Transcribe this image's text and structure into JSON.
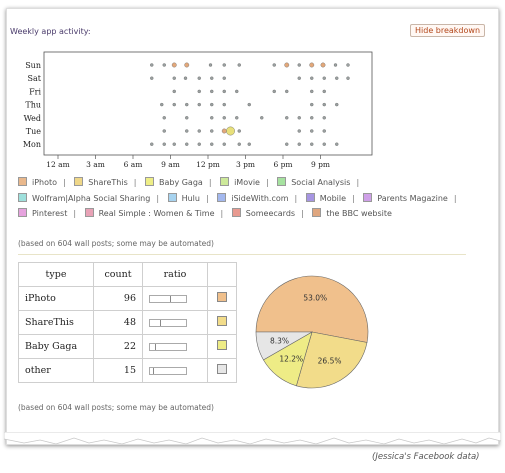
{
  "header": {
    "title": "Weekly app activity:",
    "hide_button": "Hide breakdown"
  },
  "chart_data": [
    {
      "type": "scatter",
      "title": "Weekly app activity:",
      "y_categories": [
        "Sun",
        "Sat",
        "Fri",
        "Thu",
        "Wed",
        "Tue",
        "Mon"
      ],
      "x_ticks": [
        "12 am",
        "3 am",
        "6 am",
        "9 am",
        "12 pm",
        "3 pm",
        "6 pm",
        "9 pm"
      ],
      "x_range_hours": [
        0,
        24
      ],
      "points": [
        {
          "day": "Sun",
          "hour": 7.5,
          "size": 1
        },
        {
          "day": "Sun",
          "hour": 8.5,
          "size": 1
        },
        {
          "day": "Sun",
          "hour": 9.3,
          "size": 2
        },
        {
          "day": "Sun",
          "hour": 10.3,
          "size": 2
        },
        {
          "day": "Sun",
          "hour": 12.2,
          "size": 1
        },
        {
          "day": "Sun",
          "hour": 13.3,
          "size": 1
        },
        {
          "day": "Sun",
          "hour": 14.5,
          "size": 1
        },
        {
          "day": "Sun",
          "hour": 17.3,
          "size": 1
        },
        {
          "day": "Sun",
          "hour": 18.3,
          "size": 2
        },
        {
          "day": "Sun",
          "hour": 19.3,
          "size": 1
        },
        {
          "day": "Sun",
          "hour": 20.3,
          "size": 2
        },
        {
          "day": "Sun",
          "hour": 21.2,
          "size": 2
        },
        {
          "day": "Sun",
          "hour": 22.2,
          "size": 1
        },
        {
          "day": "Sun",
          "hour": 23.2,
          "size": 1
        },
        {
          "day": "Sat",
          "hour": 7.5,
          "size": 1
        },
        {
          "day": "Sat",
          "hour": 9.3,
          "size": 1
        },
        {
          "day": "Sat",
          "hour": 10.2,
          "size": 1
        },
        {
          "day": "Sat",
          "hour": 11.3,
          "size": 1
        },
        {
          "day": "Sat",
          "hour": 12.3,
          "size": 1
        },
        {
          "day": "Sat",
          "hour": 13.3,
          "size": 1
        },
        {
          "day": "Sat",
          "hour": 19.3,
          "size": 1
        },
        {
          "day": "Sat",
          "hour": 20.3,
          "size": 1
        },
        {
          "day": "Sat",
          "hour": 21.3,
          "size": 1
        },
        {
          "day": "Sat",
          "hour": 22.3,
          "size": 1
        },
        {
          "day": "Sat",
          "hour": 23.2,
          "size": 1
        },
        {
          "day": "Fri",
          "hour": 9.3,
          "size": 1
        },
        {
          "day": "Fri",
          "hour": 11.3,
          "size": 1
        },
        {
          "day": "Fri",
          "hour": 12.3,
          "size": 1
        },
        {
          "day": "Fri",
          "hour": 13.3,
          "size": 1
        },
        {
          "day": "Fri",
          "hour": 14.3,
          "size": 1
        },
        {
          "day": "Fri",
          "hour": 17.3,
          "size": 1
        },
        {
          "day": "Fri",
          "hour": 18.3,
          "size": 1
        },
        {
          "day": "Fri",
          "hour": 20.3,
          "size": 1
        },
        {
          "day": "Fri",
          "hour": 21.3,
          "size": 1
        },
        {
          "day": "Thu",
          "hour": 8.3,
          "size": 1
        },
        {
          "day": "Thu",
          "hour": 9.3,
          "size": 1
        },
        {
          "day": "Thu",
          "hour": 10.3,
          "size": 1
        },
        {
          "day": "Thu",
          "hour": 11.3,
          "size": 1
        },
        {
          "day": "Thu",
          "hour": 12.3,
          "size": 1
        },
        {
          "day": "Thu",
          "hour": 13.3,
          "size": 1
        },
        {
          "day": "Thu",
          "hour": 15.3,
          "size": 1
        },
        {
          "day": "Thu",
          "hour": 20.3,
          "size": 1
        },
        {
          "day": "Thu",
          "hour": 21.3,
          "size": 1
        },
        {
          "day": "Thu",
          "hour": 22.3,
          "size": 1
        },
        {
          "day": "Wed",
          "hour": 8.5,
          "size": 1
        },
        {
          "day": "Wed",
          "hour": 10.3,
          "size": 1
        },
        {
          "day": "Wed",
          "hour": 12.3,
          "size": 1
        },
        {
          "day": "Wed",
          "hour": 13.3,
          "size": 1
        },
        {
          "day": "Wed",
          "hour": 14.3,
          "size": 1
        },
        {
          "day": "Wed",
          "hour": 16.3,
          "size": 1
        },
        {
          "day": "Wed",
          "hour": 18.3,
          "size": 1
        },
        {
          "day": "Wed",
          "hour": 19.3,
          "size": 1
        },
        {
          "day": "Wed",
          "hour": 20.3,
          "size": 1
        },
        {
          "day": "Wed",
          "hour": 21.3,
          "size": 1
        },
        {
          "day": "Tue",
          "hour": 8.5,
          "size": 1
        },
        {
          "day": "Tue",
          "hour": 10.3,
          "size": 1
        },
        {
          "day": "Tue",
          "hour": 11.3,
          "size": 1
        },
        {
          "day": "Tue",
          "hour": 12.3,
          "size": 1
        },
        {
          "day": "Tue",
          "hour": 13.3,
          "size": 2
        },
        {
          "day": "Tue",
          "hour": 13.8,
          "size": 3
        },
        {
          "day": "Tue",
          "hour": 14.5,
          "size": 1
        },
        {
          "day": "Tue",
          "hour": 19.3,
          "size": 1
        },
        {
          "day": "Tue",
          "hour": 20.3,
          "size": 1
        },
        {
          "day": "Tue",
          "hour": 21.3,
          "size": 1
        },
        {
          "day": "Mon",
          "hour": 7.5,
          "size": 1
        },
        {
          "day": "Mon",
          "hour": 8.5,
          "size": 1
        },
        {
          "day": "Mon",
          "hour": 9.3,
          "size": 1
        },
        {
          "day": "Mon",
          "hour": 10.3,
          "size": 1
        },
        {
          "day": "Mon",
          "hour": 11.3,
          "size": 1
        },
        {
          "day": "Mon",
          "hour": 12.3,
          "size": 1
        },
        {
          "day": "Mon",
          "hour": 13.3,
          "size": 1
        },
        {
          "day": "Mon",
          "hour": 14.5,
          "size": 1
        },
        {
          "day": "Mon",
          "hour": 15.3,
          "size": 1
        },
        {
          "day": "Mon",
          "hour": 18.3,
          "size": 1
        },
        {
          "day": "Mon",
          "hour": 19.3,
          "size": 1
        },
        {
          "day": "Mon",
          "hour": 20.3,
          "size": 1
        },
        {
          "day": "Mon",
          "hour": 21.3,
          "size": 1
        },
        {
          "day": "Mon",
          "hour": 22.3,
          "size": 1
        }
      ],
      "colors": {
        "dot": "#9aa0a0",
        "dot_stroke": "#666",
        "big_dot": "#e8e07a",
        "orange_dot": "#e3a87a"
      }
    },
    {
      "type": "pie",
      "values": [
        53.0,
        26.5,
        12.2,
        8.3
      ],
      "labels": [
        "53.0%",
        "26.5%",
        "12.2%",
        "8.3%"
      ],
      "colors": [
        "#f0c08c",
        "#f2dc8a",
        "#eeec86",
        "#e6e6e6"
      ]
    }
  ],
  "legend": [
    {
      "label": "iPhoto",
      "color": "#e9b88c"
    },
    {
      "label": "ShareThis",
      "color": "#efd788"
    },
    {
      "label": "Baby Gaga",
      "color": "#eeee86"
    },
    {
      "label": "iMovie",
      "color": "#cde99a"
    },
    {
      "label": "Social Analysis",
      "color": "#a6e2a0"
    },
    {
      "label": "Wolfram|Alpha Social Sharing",
      "color": "#9ee0dc"
    },
    {
      "label": "Hulu",
      "color": "#a7d3ef"
    },
    {
      "label": "iSideWith.com",
      "color": "#a3b8ee"
    },
    {
      "label": "Mobile",
      "color": "#a695e2"
    },
    {
      "label": "Parents Magazine",
      "color": "#cfa0e8"
    },
    {
      "label": "Pinterest",
      "color": "#e6a3de"
    },
    {
      "label": "Real Simple : Women & Time",
      "color": "#e8a2b6"
    },
    {
      "label": "Someecards",
      "color": "#e89a90"
    },
    {
      "label": "the BBC website",
      "color": "#dfa67f"
    }
  ],
  "note_top": "(based on 604 wall posts; some may be automated)",
  "note_bottom": "(based on 604 wall posts; some may be automated)",
  "table": {
    "headers": [
      "type",
      "count",
      "ratio",
      ""
    ],
    "rows": [
      {
        "type": "iPhoto",
        "count": "96",
        "ratio": 0.55,
        "color": "#f0c08c"
      },
      {
        "type": "ShareThis",
        "count": "48",
        "ratio": 0.28,
        "color": "#f2dc8a"
      },
      {
        "type": "Baby Gaga",
        "count": "22",
        "ratio": 0.13,
        "color": "#eeec86"
      },
      {
        "type": "other",
        "count": "15",
        "ratio": 0.09,
        "color": "#e6e6e6"
      }
    ]
  },
  "caption": "(Jessica's Facebook data)"
}
